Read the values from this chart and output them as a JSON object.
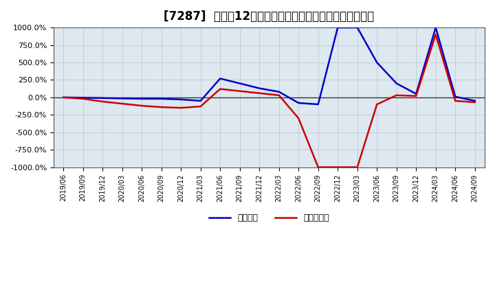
{
  "title": "[7287]  利益の12か月移動合計の対前年同期増減率の推移",
  "ylim": [
    -1000,
    1000
  ],
  "yticks": [
    -1000,
    -750,
    -500,
    -250,
    0,
    250,
    500,
    750,
    1000
  ],
  "ytick_labels": [
    "-1000.0%",
    "-750.0%",
    "-500.0%",
    "-250.0%",
    "0.0%",
    "250.0%",
    "500.0%",
    "750.0%",
    "1000.0%"
  ],
  "x_labels": [
    "2019/06",
    "2019/09",
    "2019/12",
    "2020/03",
    "2020/06",
    "2020/09",
    "2020/12",
    "2021/03",
    "2021/06",
    "2021/09",
    "2021/12",
    "2022/03",
    "2022/06",
    "2022/09",
    "2022/12",
    "2023/03",
    "2023/06",
    "2023/09",
    "2023/12",
    "2024/03",
    "2024/06",
    "2024/09"
  ],
  "operating_profit": [
    0,
    -5,
    -10,
    -15,
    -20,
    -20,
    -30,
    -50,
    270,
    200,
    130,
    80,
    -80,
    -100,
    1000,
    1000,
    500,
    200,
    50,
    1000,
    10,
    -50
  ],
  "net_profit": [
    0,
    -20,
    -60,
    -90,
    -120,
    -140,
    -150,
    -130,
    120,
    90,
    60,
    30,
    -300,
    -1000,
    -1000,
    -1000,
    -100,
    30,
    20,
    900,
    -50,
    -70
  ],
  "operating_color": "#0000cc",
  "net_color": "#cc0000",
  "background_color": "#dde8f0",
  "plot_bg_color": "#dde8f0",
  "grid_color": "#888899",
  "legend_operating": "経常利益",
  "legend_net": "当期純利益",
  "title_fontsize": 12
}
